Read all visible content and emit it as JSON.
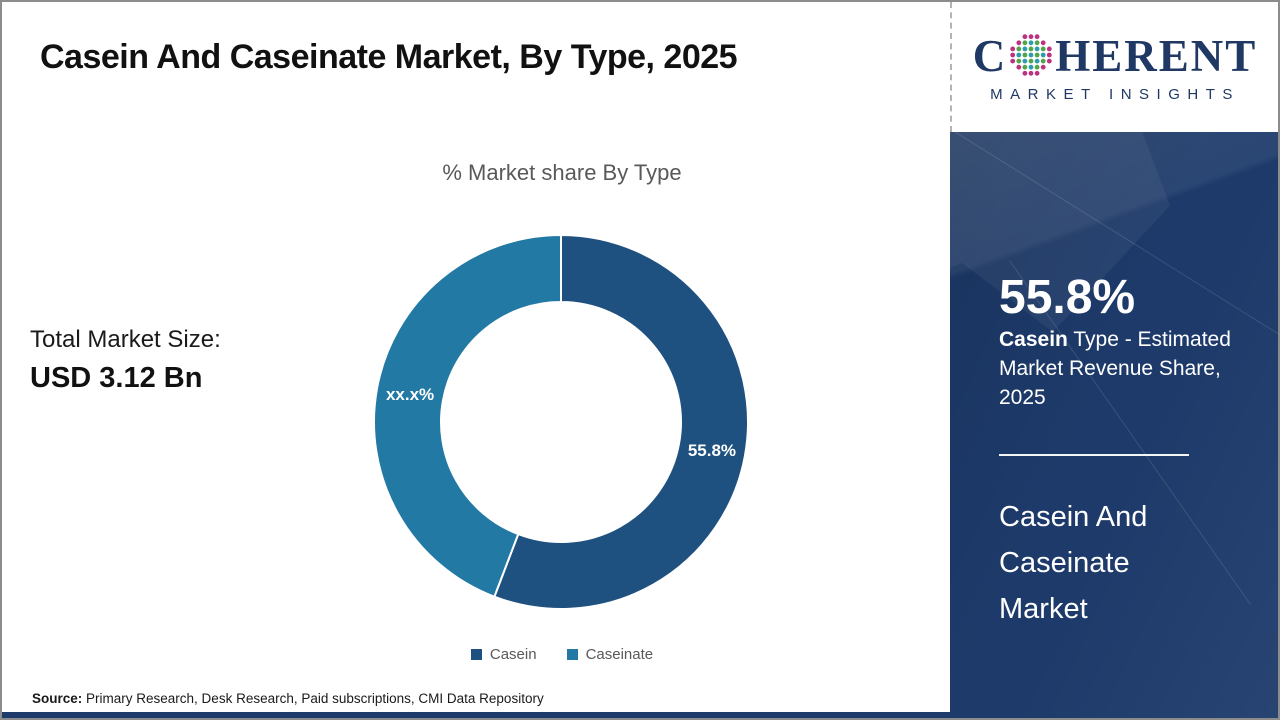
{
  "title": "Casein And Caseinate Market, By Type, 2025",
  "logo": {
    "brand_prefix": "C",
    "brand_suffix": "HERENT",
    "brand_subtitle": "MARKET INSIGHTS",
    "brand_color": "#1f3864",
    "globe_dot_colors": {
      "inner_a": "#2b9daf",
      "inner_b": "#53a546",
      "outer": "#bb3380"
    }
  },
  "stats": {
    "total_label": "Total Market Size:",
    "total_value": "USD 3.12 Bn"
  },
  "chart_data": {
    "type": "pie",
    "donut": true,
    "title": "% Market share By Type",
    "categories": [
      "Casein",
      "Caseinate"
    ],
    "values": [
      55.8,
      44.2
    ],
    "slice_labels": [
      "55.8%",
      "xx.x%"
    ],
    "colors": [
      "#1f5180",
      "#2279a3"
    ],
    "legend_position": "bottom",
    "legend_text_color": "#595959"
  },
  "sidebar": {
    "background": "#1d3a6a",
    "highlight_value": "55.8%",
    "highlight_bold": "Casein",
    "highlight_text": "Type - Estimated Market Revenue Share, 2025",
    "market_title": "Casein And Caseinate Market"
  },
  "footer": {
    "source_label": "Source:",
    "source_text": "Primary Research, Desk Research, Paid subscriptions, CMI Data Repository"
  }
}
